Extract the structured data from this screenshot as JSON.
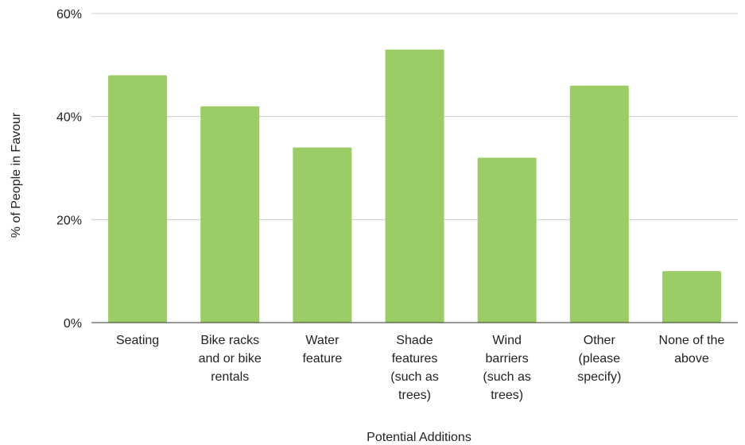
{
  "chart_data": {
    "type": "bar",
    "title": "",
    "xlabel": "Potential Additions",
    "ylabel": "% of People in Favour",
    "ylim": [
      0,
      60
    ],
    "y_ticks": [
      "0%",
      "20%",
      "40%",
      "60%"
    ],
    "y_tick_values": [
      0,
      20,
      40,
      60
    ],
    "grid": true,
    "legend": "none",
    "bar_color": "#9ccc65",
    "categories": [
      [
        "Seating"
      ],
      [
        "Bike racks",
        "and or bike",
        "rentals"
      ],
      [
        "Water",
        "feature"
      ],
      [
        "Shade",
        "features",
        "(such as",
        "trees)"
      ],
      [
        "Wind",
        "barriers",
        "(such as",
        "trees)"
      ],
      [
        "Other",
        "(please",
        "specify)"
      ],
      [
        "None of the",
        "above"
      ]
    ],
    "values": [
      48,
      42,
      34,
      53,
      32,
      46,
      10
    ]
  }
}
